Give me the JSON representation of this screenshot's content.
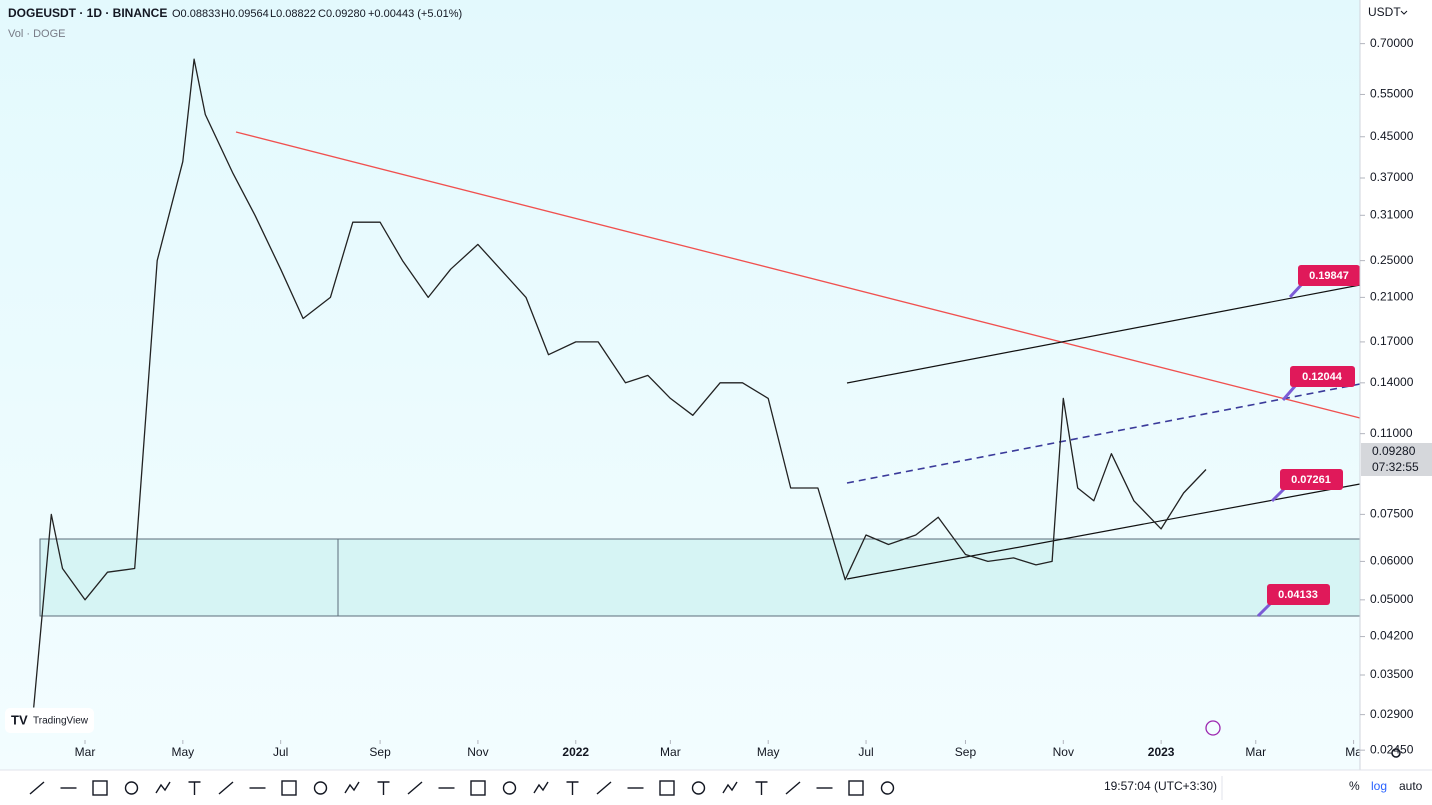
{
  "header": {
    "symbol": "DOGEUSDT · 1D · BINANCE",
    "open": "O0.08833",
    "high": "H0.09564",
    "low": "L0.08822",
    "close": "C0.09280",
    "change": "+0.00443 (+5.01%)",
    "volume": "Vol · DOGE",
    "currency": "USDT",
    "last_price": "0.09280",
    "countdown": "07:32:55",
    "logo": "TradingView"
  },
  "footer": {
    "clock": "19:57:04 (UTC+3:30)",
    "percent": "%",
    "log": "log",
    "auto": "auto"
  },
  "annotations": [
    {
      "label": "0.19847"
    },
    {
      "label": "0.12044"
    },
    {
      "label": "0.07261"
    },
    {
      "label": "0.04133"
    }
  ],
  "chart_data": {
    "type": "line",
    "log_scale": true,
    "color": "#222222",
    "x": [
      "2021-01-28",
      "2021-02-08",
      "2021-02-15",
      "2021-03-01",
      "2021-03-15",
      "2021-04-01",
      "2021-04-15",
      "2021-05-01",
      "2021-05-08",
      "2021-05-15",
      "2021-06-01",
      "2021-06-15",
      "2021-07-01",
      "2021-07-15",
      "2021-08-01",
      "2021-08-15",
      "2021-09-01",
      "2021-09-15",
      "2021-10-01",
      "2021-10-15",
      "2021-11-01",
      "2021-11-15",
      "2021-12-01",
      "2021-12-15",
      "2022-01-01",
      "2022-01-15",
      "2022-02-01",
      "2022-02-15",
      "2022-03-01",
      "2022-03-15",
      "2022-04-01",
      "2022-04-15",
      "2022-05-01",
      "2022-05-15",
      "2022-06-01",
      "2022-06-18",
      "2022-07-01",
      "2022-07-15",
      "2022-08-01",
      "2022-08-15",
      "2022-09-01",
      "2022-09-15",
      "2022-10-01",
      "2022-10-15",
      "2022-10-25",
      "2022-11-01",
      "2022-11-10",
      "2022-11-20",
      "2022-12-01",
      "2022-12-15",
      "2023-01-01",
      "2023-01-15",
      "2023-01-29"
    ],
    "values": [
      0.03,
      0.075,
      0.058,
      0.05,
      0.057,
      0.058,
      0.25,
      0.4,
      0.65,
      0.5,
      0.38,
      0.31,
      0.24,
      0.19,
      0.21,
      0.3,
      0.3,
      0.25,
      0.21,
      0.24,
      0.27,
      0.24,
      0.21,
      0.16,
      0.17,
      0.17,
      0.14,
      0.145,
      0.13,
      0.12,
      0.14,
      0.14,
      0.13,
      0.085,
      0.085,
      0.055,
      0.068,
      0.065,
      0.068,
      0.074,
      0.062,
      0.06,
      0.061,
      0.059,
      0.06,
      0.13,
      0.085,
      0.08,
      0.1,
      0.08,
      0.07,
      0.083,
      0.0928
    ],
    "xlim": [
      "2021-01-07",
      "2023-05-05"
    ],
    "xticks": [
      {
        "value": "2021-03-01",
        "label": "Mar"
      },
      {
        "value": "2021-05-01",
        "label": "May"
      },
      {
        "value": "2021-07-01",
        "label": "Jul"
      },
      {
        "value": "2021-09-01",
        "label": "Sep"
      },
      {
        "value": "2021-11-01",
        "label": "Nov"
      },
      {
        "value": "2022-01-01",
        "label": "2022"
      },
      {
        "value": "2022-03-01",
        "label": "Mar"
      },
      {
        "value": "2022-05-01",
        "label": "May"
      },
      {
        "value": "2022-07-01",
        "label": "Jul"
      },
      {
        "value": "2022-09-01",
        "label": "Sep"
      },
      {
        "value": "2022-11-01",
        "label": "Nov"
      },
      {
        "value": "2023-01-01",
        "label": "2023"
      },
      {
        "value": "2023-03-01",
        "label": "Mar"
      },
      {
        "value": "2023-05-01",
        "label": "Ma"
      }
    ],
    "ylim": [
      0.0223,
      0.861
    ],
    "yticks": [
      {
        "value": 0.7,
        "label": "0.70000"
      },
      {
        "value": 0.55,
        "label": "0.55000"
      },
      {
        "value": 0.45,
        "label": "0.45000"
      },
      {
        "value": 0.37,
        "label": "0.37000"
      },
      {
        "value": 0.31,
        "label": "0.31000"
      },
      {
        "value": 0.25,
        "label": "0.25000"
      },
      {
        "value": 0.21,
        "label": "0.21000"
      },
      {
        "value": 0.17,
        "label": "0.17000"
      },
      {
        "value": 0.14,
        "label": "0.14000"
      },
      {
        "value": 0.11,
        "label": "0.11000"
      },
      {
        "value": 0.075,
        "label": "0.07500"
      },
      {
        "value": 0.06,
        "label": "0.06000"
      },
      {
        "value": 0.05,
        "label": "0.05000"
      },
      {
        "value": 0.042,
        "label": "0.04200"
      },
      {
        "value": 0.035,
        "label": "0.03500"
      },
      {
        "value": 0.029,
        "label": "0.02900"
      },
      {
        "value": 0.0245,
        "label": "0.02450"
      }
    ]
  }
}
